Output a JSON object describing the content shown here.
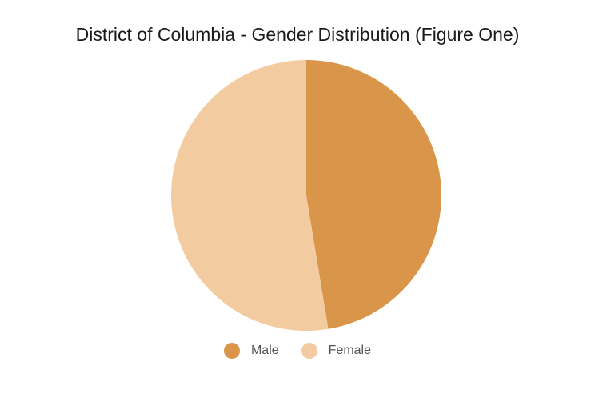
{
  "chart_data": {
    "type": "pie",
    "title": "District of Columbia - Gender Distribution (Figure One)",
    "categories": [
      "Male",
      "Female"
    ],
    "values": [
      47.4,
      52.6
    ],
    "colors": [
      "#d9964b",
      "#f2cba1"
    ],
    "legend_position": "bottom"
  }
}
